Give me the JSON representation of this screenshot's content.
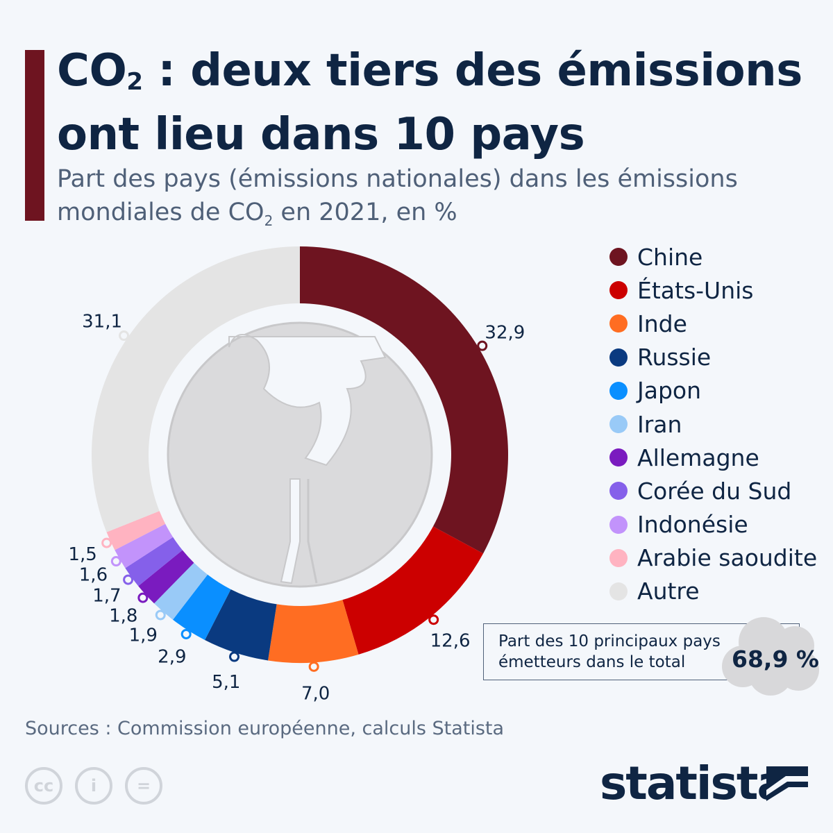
{
  "header": {
    "title_a": "CO",
    "title_sub": "2",
    "title_b": " : deux tiers des émissions",
    "title_line2": "ont lieu dans 10 pays",
    "subtitle_a": "Part des pays (émissions nationales) dans les émissions",
    "subtitle_b": "mondiales de CO",
    "subtitle_sub": "2",
    "subtitle_c": " en 2021, en %"
  },
  "chart_data": {
    "type": "pie",
    "variant": "donut",
    "start": "top",
    "direction": "clockwise",
    "legend_placement": "right",
    "categories": [
      "Chine",
      "États-Unis",
      "Inde",
      "Russie",
      "Japon",
      "Iran",
      "Allemagne",
      "Corée du Sud",
      "Indonésie",
      "Arabie saoudite",
      "Autre"
    ],
    "values": [
      32.9,
      12.6,
      7.0,
      5.1,
      2.9,
      1.9,
      1.8,
      1.7,
      1.6,
      1.5,
      31.1
    ],
    "labels": [
      "32,9",
      "12,6",
      "7,0",
      "5,1",
      "2,9",
      "1,9",
      "1,8",
      "1,7",
      "1,6",
      "1,5",
      "31,1"
    ],
    "colors": [
      "#6e1420",
      "#cc0000",
      "#ff6d22",
      "#0a3a80",
      "#0a8fff",
      "#99caf7",
      "#7a1bbf",
      "#8560ea",
      "#c293fb",
      "#ffb3c1",
      "#e4e4e4"
    ]
  },
  "callout": {
    "text_1": "Part des 10 principaux pays",
    "text_2": "émetteurs dans le total",
    "value": "68,9 %"
  },
  "footer": {
    "source": "Sources : Commission européenne, calculs Statista",
    "logo": "statista",
    "license_icons": [
      "cc-icon",
      "attribution-icon",
      "no-derivatives-icon"
    ]
  }
}
